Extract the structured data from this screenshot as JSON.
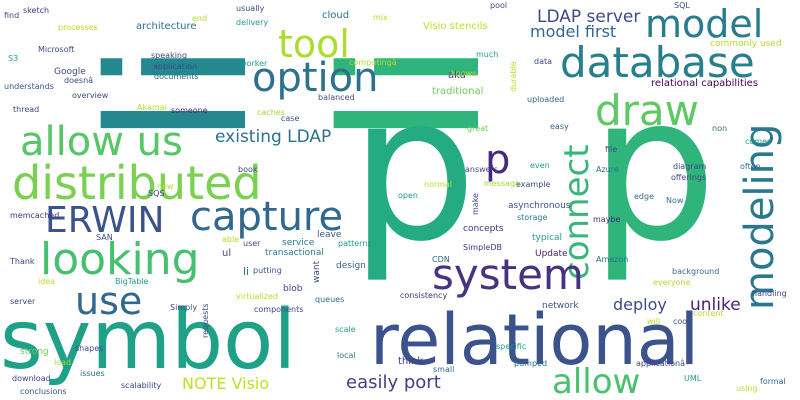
{
  "words": [
    {
      "text": "li",
      "color": "#23898e",
      "vertical": true
    },
    {
      "text": "li",
      "color": "#2fb47c",
      "vertical": true
    },
    {
      "text": "p",
      "color": "#25ab82"
    },
    {
      "text": "p",
      "color": "#2fb47c"
    },
    {
      "text": "symbol",
      "color": "#1fa187"
    },
    {
      "text": "relational",
      "color": "#3b528b"
    },
    {
      "text": "model",
      "color": "#287c8e"
    },
    {
      "text": "database",
      "color": "#277f8e"
    },
    {
      "text": "option",
      "color": "#2c718e"
    },
    {
      "text": "tool",
      "color": "#addc30"
    },
    {
      "text": "draw",
      "color": "#5ec962"
    },
    {
      "text": "connect",
      "color": "#35b779"
    },
    {
      "text": "modeling",
      "color": "#2a788e"
    },
    {
      "text": "allow us",
      "color": "#56c667"
    },
    {
      "text": "distributed",
      "color": "#7ad151"
    },
    {
      "text": "capture",
      "color": "#31688e"
    },
    {
      "text": "ERWIN",
      "color": "#3b528b"
    },
    {
      "text": "looking",
      "color": "#46c06f"
    },
    {
      "text": "system",
      "color": "#46327e"
    },
    {
      "text": "use",
      "color": "#31688e"
    },
    {
      "text": "allow",
      "color": "#4ac16d"
    },
    {
      "text": "p",
      "color": "#482878"
    },
    {
      "text": "LDAP server",
      "color": "#3e4989"
    },
    {
      "text": "model first",
      "color": "#31688e"
    },
    {
      "text": "existing LDAP",
      "color": "#2c718e"
    },
    {
      "text": "deploy",
      "color": "#3e4a89"
    },
    {
      "text": "unlike",
      "color": "#482475"
    },
    {
      "text": "NOTE Visio",
      "color": "#c2df23"
    },
    {
      "text": "easily port",
      "color": "#424086"
    },
    {
      "text": "relational capabilities",
      "color": "#440154"
    },
    {
      "text": "architecture",
      "color": "#2c718e"
    },
    {
      "text": "cloud",
      "color": "#2c728e"
    },
    {
      "text": "Visio stencils",
      "color": "#bddf26"
    },
    {
      "text": "traditional",
      "color": "#6ece58"
    },
    {
      "text": "commonly used",
      "color": "#b5de2b"
    },
    {
      "text": "Google",
      "color": "#3e4989"
    },
    {
      "text": "aka",
      "color": "#414487"
    },
    {
      "text": "design",
      "color": "#355f8d"
    },
    {
      "text": "service",
      "color": "#2a788e"
    },
    {
      "text": "transactional",
      "color": "#2a788e"
    },
    {
      "text": "leave",
      "color": "#3b528b"
    },
    {
      "text": "concepts",
      "color": "#46327e"
    },
    {
      "text": "SimpleDB",
      "color": "#46327e"
    },
    {
      "text": "asynchronous",
      "color": "#3b528b"
    },
    {
      "text": "storage",
      "color": "#2a788e"
    },
    {
      "text": "typical",
      "color": "#1f9e89"
    },
    {
      "text": "Update",
      "color": "#482475"
    },
    {
      "text": "Amazon",
      "color": "#2c718e"
    },
    {
      "text": "network",
      "color": "#3b528b"
    },
    {
      "text": "consistency",
      "color": "#46327e"
    },
    {
      "text": "think",
      "color": "#443983"
    },
    {
      "text": "local",
      "color": "#2a788e"
    },
    {
      "text": "scale",
      "color": "#1f9e89"
    },
    {
      "text": "queues",
      "color": "#31688e"
    },
    {
      "text": "blob",
      "color": "#3e4989"
    },
    {
      "text": "putting",
      "color": "#3b528b"
    },
    {
      "text": "components",
      "color": "#3e4989"
    },
    {
      "text": "virtualized",
      "color": "#b5de2b"
    },
    {
      "text": "Simply",
      "color": "#3e4989"
    },
    {
      "text": "BigTable",
      "color": "#1f9e89"
    },
    {
      "text": "memcached",
      "color": "#46327e"
    },
    {
      "text": "Thank",
      "color": "#3e4989"
    },
    {
      "text": "idea",
      "color": "#b5de2b"
    },
    {
      "text": "server",
      "color": "#3e4989"
    },
    {
      "text": "strong",
      "color": "#6ece58"
    },
    {
      "text": "download",
      "color": "#414487"
    },
    {
      "text": "conclusions",
      "color": "#3b528b"
    },
    {
      "text": "scalability",
      "color": "#3e4989"
    },
    {
      "text": "load",
      "color": "#a0da39"
    },
    {
      "text": "issues",
      "color": "#2c728e"
    },
    {
      "text": "shapes",
      "color": "#3e4989"
    },
    {
      "text": "small",
      "color": "#31688e"
    },
    {
      "text": "pumped",
      "color": "#2c718e"
    },
    {
      "text": "specific",
      "color": "#1f9e89"
    },
    {
      "text": "applicationâ",
      "color": "#3e4989"
    },
    {
      "text": "cool",
      "color": "#3b528b"
    },
    {
      "text": "UML",
      "color": "#1f9e89"
    },
    {
      "text": "using",
      "color": "#b5de2b"
    },
    {
      "text": "formal",
      "color": "#31688e"
    },
    {
      "text": "handling",
      "color": "#3e4989"
    },
    {
      "text": "background",
      "color": "#31688e"
    },
    {
      "text": "content",
      "color": "#b5de2b"
    },
    {
      "text": "will",
      "color": "#b5de2b"
    },
    {
      "text": "everyone",
      "color": "#b5de2b"
    },
    {
      "text": "CDN",
      "color": "#31688e"
    },
    {
      "text": "maybe",
      "color": "#482475"
    },
    {
      "text": "example",
      "color": "#3e4989"
    },
    {
      "text": "edge",
      "color": "#31688e"
    },
    {
      "text": "Now",
      "color": "#2a788e"
    },
    {
      "text": "offerings",
      "color": "#3e4989"
    },
    {
      "text": "diagram",
      "color": "#3e4989"
    },
    {
      "text": "often",
      "color": "#2c718e"
    },
    {
      "text": "Azure",
      "color": "#2c718e"
    },
    {
      "text": "file",
      "color": "#3e4989"
    },
    {
      "text": "comes",
      "color": "#1f9e89"
    },
    {
      "text": "non",
      "color": "#31688e"
    },
    {
      "text": "easy",
      "color": "#31688e"
    },
    {
      "text": "even",
      "color": "#1f9e89"
    },
    {
      "text": "answers",
      "color": "#3e4989"
    },
    {
      "text": "message",
      "color": "#a0da39"
    },
    {
      "text": "uploaded",
      "color": "#31688e"
    },
    {
      "text": "great",
      "color": "#6ece58"
    },
    {
      "text": "case",
      "color": "#3e4989"
    },
    {
      "text": "balanced",
      "color": "#3e4989"
    },
    {
      "text": "caches",
      "color": "#a0da39"
    },
    {
      "text": "someone",
      "color": "#482475"
    },
    {
      "text": "Akamai",
      "color": "#b5de2b"
    },
    {
      "text": "overview",
      "color": "#3e4989"
    },
    {
      "text": "thread",
      "color": "#3e4989"
    },
    {
      "text": "understands",
      "color": "#3b528b"
    },
    {
      "text": "doesnâ",
      "color": "#3e4989"
    },
    {
      "text": "S3",
      "color": "#1f9e89"
    },
    {
      "text": "Microsoft",
      "color": "#3e4989"
    },
    {
      "text": "find",
      "color": "#3e4989"
    },
    {
      "text": "sketch",
      "color": "#443983"
    },
    {
      "text": "processes",
      "color": "#b5de2b"
    },
    {
      "text": "speaking",
      "color": "#3e4989"
    },
    {
      "text": "application",
      "color": "#3e4989"
    },
    {
      "text": "documents",
      "color": "#31688e"
    },
    {
      "text": "end",
      "color": "#b5de2b"
    },
    {
      "text": "delivery",
      "color": "#1f9e89"
    },
    {
      "text": "usually",
      "color": "#3e4989"
    },
    {
      "text": "worker",
      "color": "#1f9e89"
    },
    {
      "text": "computingâ",
      "color": "#b5de2b"
    },
    {
      "text": "mix",
      "color": "#b5de2b"
    },
    {
      "text": "pool",
      "color": "#3e4989"
    },
    {
      "text": "SQL",
      "color": "#3e4989"
    },
    {
      "text": "much",
      "color": "#1f9e89"
    },
    {
      "text": "data",
      "color": "#3e4989"
    },
    {
      "text": "knows",
      "color": "#b5de2b"
    },
    {
      "text": "durable",
      "color": "#b5de2b"
    },
    {
      "text": "open",
      "color": "#1f9e89"
    },
    {
      "text": "normal",
      "color": "#b5de2b"
    },
    {
      "text": "make",
      "color": "#3e4989"
    },
    {
      "text": "SQS",
      "color": "#3e4989"
    },
    {
      "text": "new",
      "color": "#b5de2b"
    },
    {
      "text": "book",
      "color": "#3e4989"
    },
    {
      "text": "user",
      "color": "#3e4989"
    },
    {
      "text": "able",
      "color": "#b5de2b"
    },
    {
      "text": "SAN",
      "color": "#3e4989"
    },
    {
      "text": "ul",
      "color": "#3e4989"
    },
    {
      "text": "li",
      "color": "#2a788e"
    },
    {
      "text": "want",
      "color": "#3e4989"
    },
    {
      "text": "patterns",
      "color": "#1f9e89"
    },
    {
      "text": "requests",
      "color": "#3e4989"
    }
  ]
}
